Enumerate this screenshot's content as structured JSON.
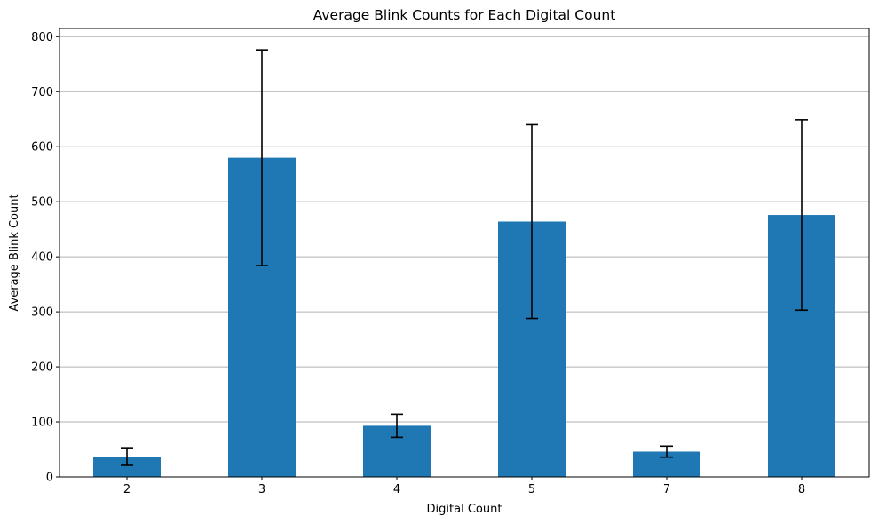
{
  "chart_data": {
    "type": "bar",
    "title": "Average Blink Counts for Each Digital Count",
    "xlabel": "Digital Count",
    "ylabel": "Average Blink Count",
    "categories": [
      "2",
      "3",
      "4",
      "5",
      "7",
      "8"
    ],
    "values": [
      37,
      580,
      93,
      464,
      46,
      476
    ],
    "error": [
      16,
      196,
      21,
      176,
      10,
      173
    ],
    "ylim": [
      0,
      815
    ],
    "yticks": [
      0,
      100,
      200,
      300,
      400,
      500,
      600,
      700,
      800
    ],
    "grid": "horizontal",
    "colors": {
      "bar": "#1f77b4",
      "error_bar": "#000000",
      "grid": "#b0b0b0"
    }
  }
}
